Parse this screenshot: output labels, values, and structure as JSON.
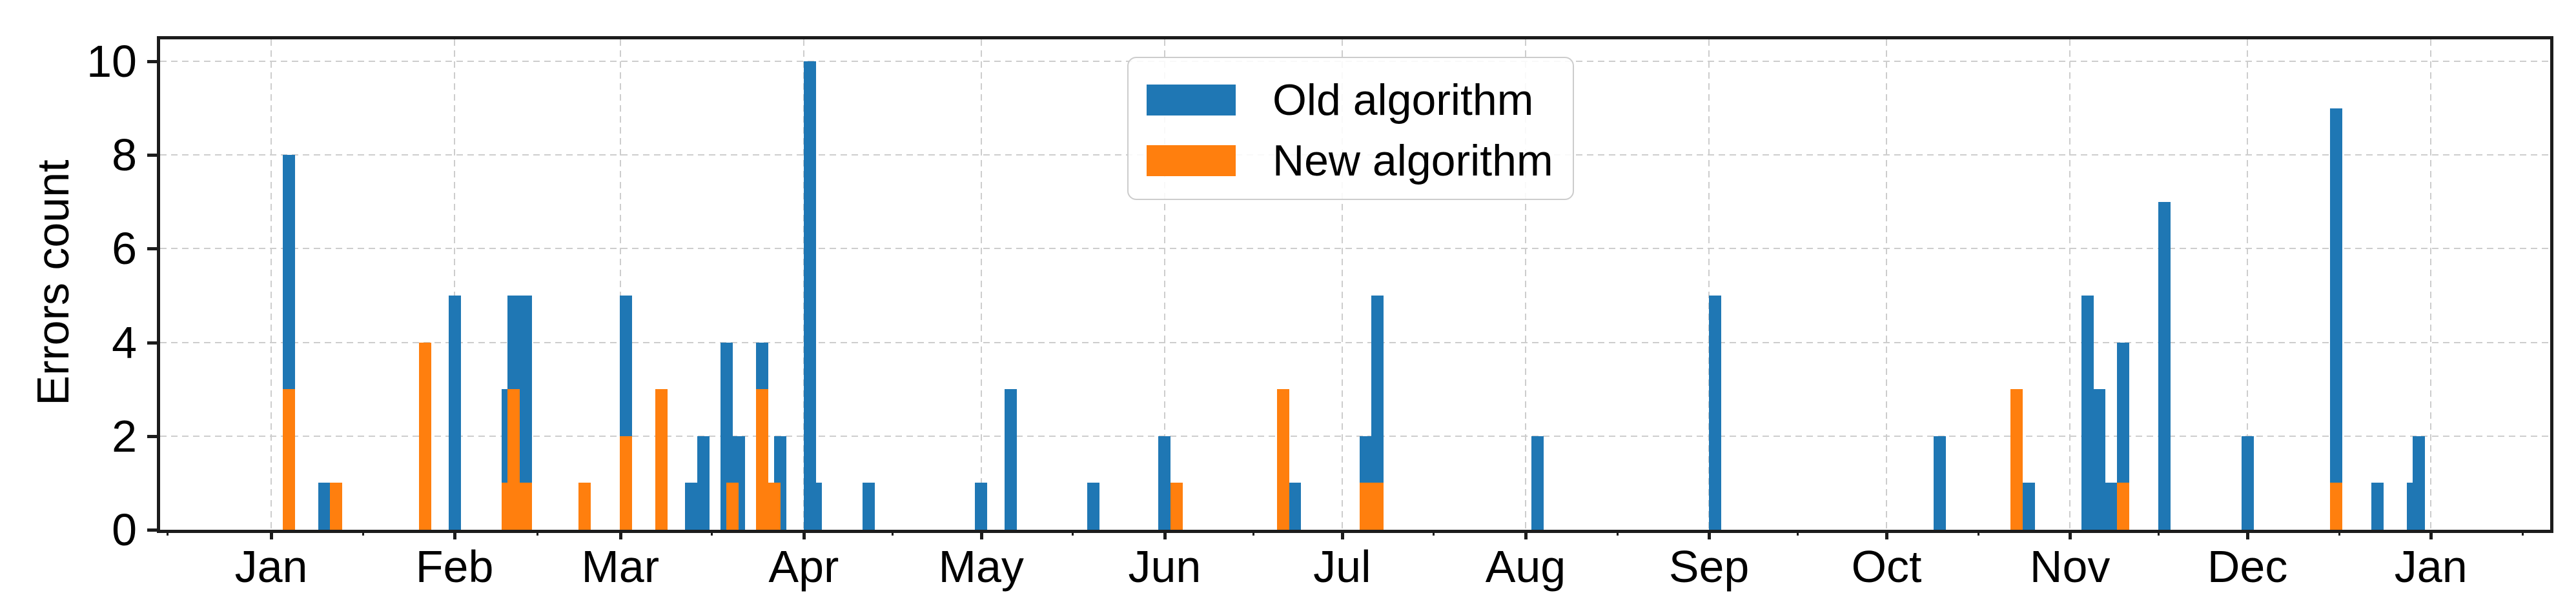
{
  "chart_data": {
    "type": "bar",
    "title": "",
    "xlabel": "",
    "ylabel": "Errors count",
    "ylim": [
      0,
      10.5
    ],
    "yticks": [
      0,
      2,
      4,
      6,
      8,
      10
    ],
    "grid": true,
    "legend_position": "upper center-left inside plot",
    "series": [
      {
        "name": "Old algorithm",
        "color": "#1f77b4"
      },
      {
        "name": "New algorithm",
        "color": "#ff7f0e"
      }
    ],
    "x_axis_unit": "date (one year, daily bars)",
    "month_ticks": [
      {
        "label": "Jan",
        "day": 0
      },
      {
        "label": "Feb",
        "day": 31
      },
      {
        "label": "Mar",
        "day": 59
      },
      {
        "label": "Apr",
        "day": 90
      },
      {
        "label": "May",
        "day": 120
      },
      {
        "label": "Jun",
        "day": 151
      },
      {
        "label": "Jul",
        "day": 181
      },
      {
        "label": "Aug",
        "day": 212
      },
      {
        "label": "Sep",
        "day": 243
      },
      {
        "label": "Oct",
        "day": 273
      },
      {
        "label": "Nov",
        "day": 304
      },
      {
        "label": "Dec",
        "day": 334
      },
      {
        "label": "Jan",
        "day": 365
      }
    ],
    "bars": [
      {
        "date": "Jan 4",
        "day": 3,
        "old": 8,
        "new": 3
      },
      {
        "date": "Jan 10",
        "day": 9,
        "old": 1
      },
      {
        "date": "Jan 12",
        "day": 11,
        "new": 1
      },
      {
        "date": "Jan 27",
        "day": 26,
        "new": 4
      },
      {
        "date": "Feb 1",
        "day": 31,
        "old": 5
      },
      {
        "date": "Feb 10",
        "day": 40,
        "old": 3,
        "new": 1
      },
      {
        "date": "Feb 11",
        "day": 41,
        "old": 5,
        "new": 3
      },
      {
        "date": "Feb 13",
        "day": 43,
        "old": 5,
        "new": 1
      },
      {
        "date": "Feb 23",
        "day": 53,
        "new": 1
      },
      {
        "date": "Mar 2",
        "day": 60,
        "old": 5,
        "new": 2
      },
      {
        "date": "Mar 8",
        "day": 66,
        "new": 3
      },
      {
        "date": "Mar 13",
        "day": 71,
        "old": 1
      },
      {
        "date": "Mar 15",
        "day": 73,
        "old": 2
      },
      {
        "date": "Mar 19",
        "day": 77,
        "old": 4
      },
      {
        "date": "Mar 20",
        "day": 78,
        "new": 1
      },
      {
        "date": "Mar 21",
        "day": 79,
        "old": 2
      },
      {
        "date": "Mar 25",
        "day": 83,
        "old": 4,
        "new": 3
      },
      {
        "date": "Mar 27",
        "day": 85,
        "new": 1
      },
      {
        "date": "Mar 28",
        "day": 86,
        "old": 2
      },
      {
        "date": "Apr 2",
        "day": 91,
        "old": 10
      },
      {
        "date": "Apr 3",
        "day": 92,
        "old": 1
      },
      {
        "date": "Apr 12",
        "day": 101,
        "old": 1
      },
      {
        "date": "May 1",
        "day": 120,
        "old": 1
      },
      {
        "date": "May 6",
        "day": 125,
        "old": 3
      },
      {
        "date": "May 20",
        "day": 139,
        "old": 1
      },
      {
        "date": "Jun 1",
        "day": 151,
        "old": 2
      },
      {
        "date": "Jun 3",
        "day": 153,
        "new": 1
      },
      {
        "date": "Jun 21",
        "day": 171,
        "new": 3
      },
      {
        "date": "Jun 23",
        "day": 173,
        "old": 1
      },
      {
        "date": "Jul 5",
        "day": 185,
        "old": 2,
        "new": 1
      },
      {
        "date": "Jul 7",
        "day": 187,
        "old": 5,
        "new": 1
      },
      {
        "date": "Aug 3",
        "day": 214,
        "old": 2
      },
      {
        "date": "Sep 2",
        "day": 244,
        "old": 5
      },
      {
        "date": "Oct 10",
        "day": 282,
        "old": 2
      },
      {
        "date": "Oct 23",
        "day": 295,
        "new": 3
      },
      {
        "date": "Oct 25",
        "day": 297,
        "old": 1
      },
      {
        "date": "Nov 4",
        "day": 307,
        "old": 5
      },
      {
        "date": "Nov 6",
        "day": 309,
        "old": 3
      },
      {
        "date": "Nov 8",
        "day": 311,
        "old": 1
      },
      {
        "date": "Nov 10",
        "day": 313,
        "old": 4,
        "new": 1
      },
      {
        "date": "Nov 17",
        "day": 320,
        "old": 7
      },
      {
        "date": "Dec 1",
        "day": 334,
        "old": 2
      },
      {
        "date": "Dec 16",
        "day": 349,
        "old": 9,
        "new": 1
      },
      {
        "date": "Dec 23",
        "day": 356,
        "old": 1
      },
      {
        "date": "Dec 29",
        "day": 362,
        "old": 1
      },
      {
        "date": "Dec 30",
        "day": 363,
        "old": 2
      }
    ],
    "colors": {
      "old": "#1f77b4",
      "new": "#ff7f0e",
      "grid": "#cdcdcd",
      "spine": "#1c1c1c",
      "text": "#000000"
    }
  }
}
